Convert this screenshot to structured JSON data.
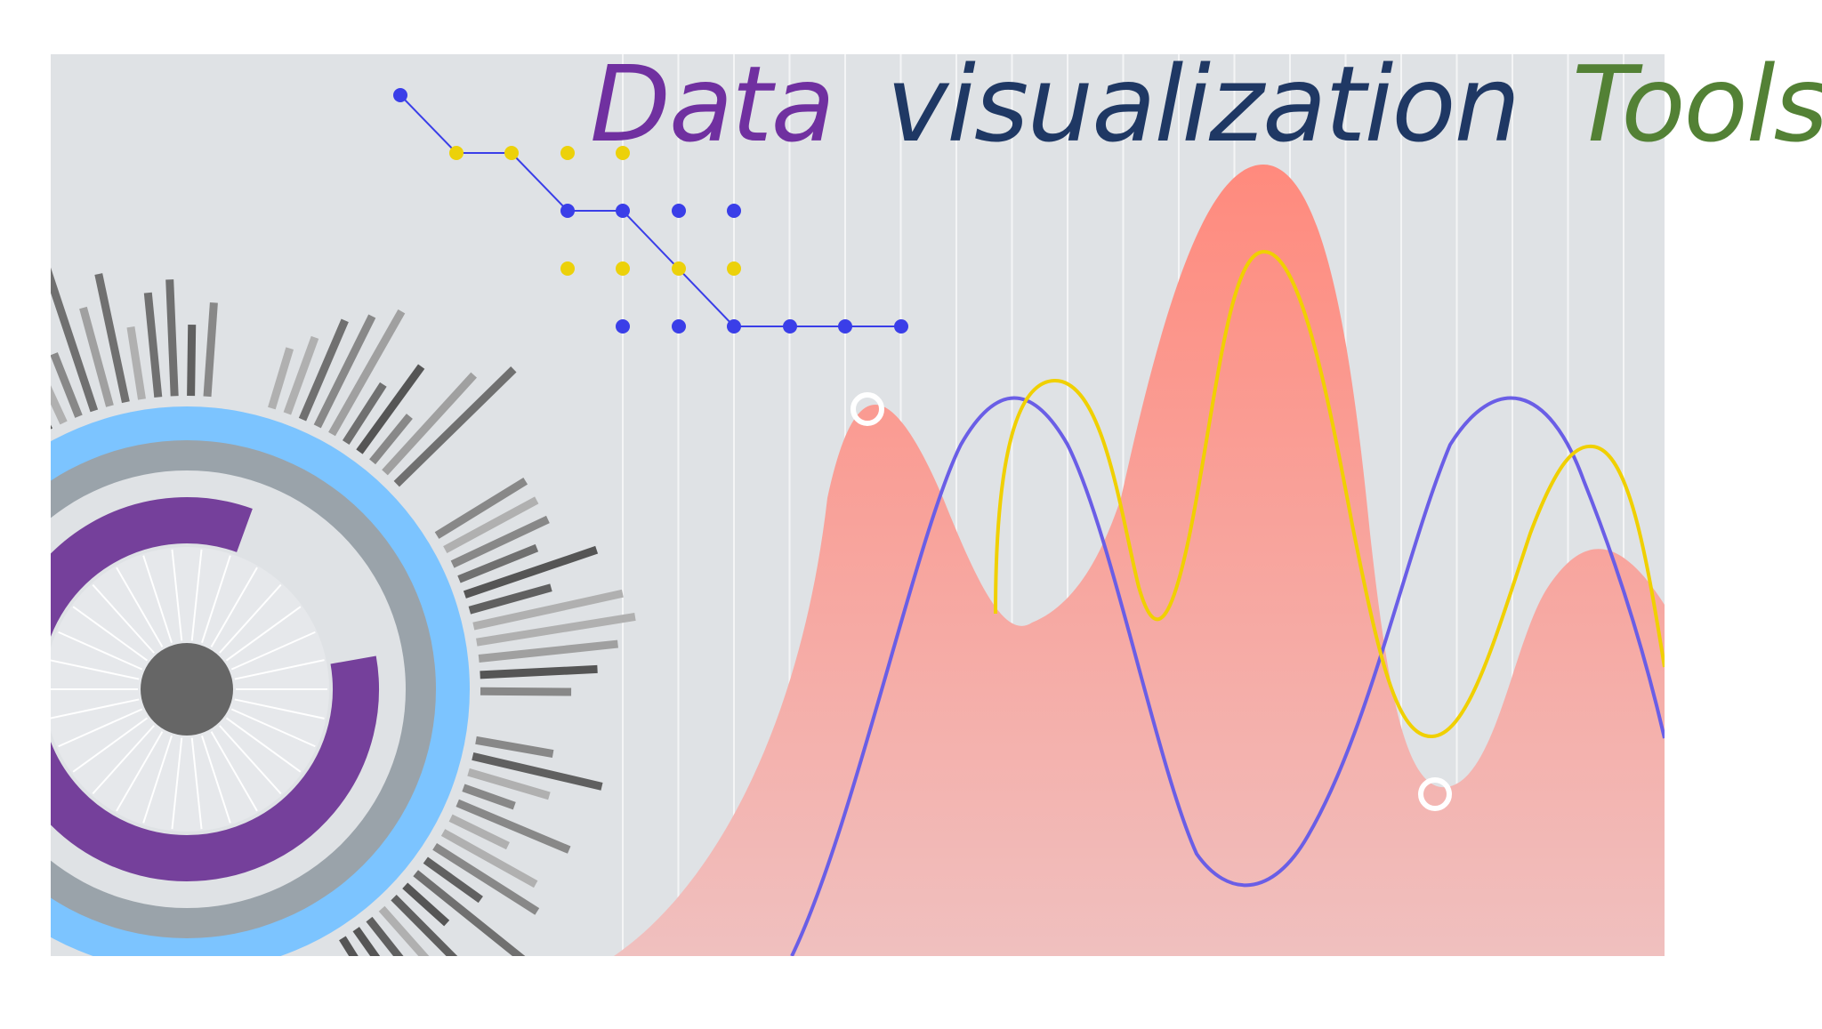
{
  "title": {
    "word1": "Data",
    "word2": "visualization",
    "word3": "Tools",
    "colors": {
      "word1": "#7030a0",
      "word2": "#1f3864",
      "word3": "#538135"
    }
  },
  "illustration": {
    "background": "#dfe2e5",
    "area_fill_top": "#ff8a7d",
    "area_fill_bottom": "#f0c0bf",
    "blue_curve": "#6a5ee6",
    "yellow_curve": "#f0d000",
    "dot_blue": "#3a3ee8",
    "dot_yellow": "#ecd10a",
    "ring_light_blue": "#7cc4ff",
    "ring_gray": "#9aa3aa",
    "ring_purple": "#75409b",
    "hub_gray": "#666666",
    "icons": [
      "radial-burst-icon",
      "connected-dots-icon",
      "wave-area-icon"
    ]
  }
}
